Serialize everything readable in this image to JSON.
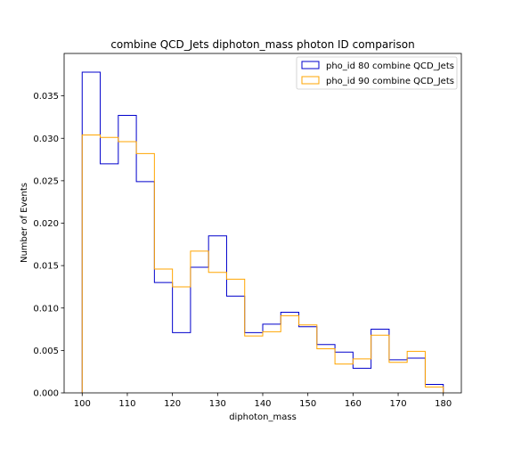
{
  "chart_data": {
    "type": "histogram-step",
    "title": "combine QCD_Jets diphoton_mass photon ID comparison",
    "xlabel": "diphoton_mass",
    "ylabel": "Number of Events",
    "xlim": [
      96,
      184
    ],
    "ylim": [
      0,
      0.04
    ],
    "x_ticks": [
      100,
      110,
      120,
      130,
      140,
      150,
      160,
      170,
      180
    ],
    "y_ticks": [
      0.0,
      0.005,
      0.01,
      0.015,
      0.02,
      0.025,
      0.03,
      0.035
    ],
    "y_tick_labels": [
      "0.000",
      "0.005",
      "0.010",
      "0.015",
      "0.020",
      "0.025",
      "0.030",
      "0.035"
    ],
    "bin_edges": [
      100,
      104,
      108,
      112,
      116,
      120,
      124,
      128,
      132,
      136,
      140,
      144,
      148,
      152,
      156,
      160,
      164,
      168,
      172,
      176,
      180
    ],
    "series": [
      {
        "name": "pho_id 80 combine QCD_Jets",
        "color": "#0000cc",
        "values": [
          0.0378,
          0.027,
          0.0327,
          0.0249,
          0.013,
          0.0071,
          0.0148,
          0.0185,
          0.0114,
          0.0071,
          0.0081,
          0.0095,
          0.0078,
          0.0057,
          0.0048,
          0.0029,
          0.0075,
          0.0039,
          0.0041,
          0.001
        ]
      },
      {
        "name": "pho_id 90 combine QCD_Jets",
        "color": "#ffa500",
        "values": [
          0.0304,
          0.0301,
          0.0296,
          0.0282,
          0.0146,
          0.0125,
          0.0167,
          0.0142,
          0.0134,
          0.0067,
          0.0072,
          0.0091,
          0.008,
          0.0052,
          0.0034,
          0.004,
          0.0068,
          0.0036,
          0.0049,
          0.0007
        ]
      }
    ],
    "grid": false,
    "legend_position": "top-right"
  }
}
